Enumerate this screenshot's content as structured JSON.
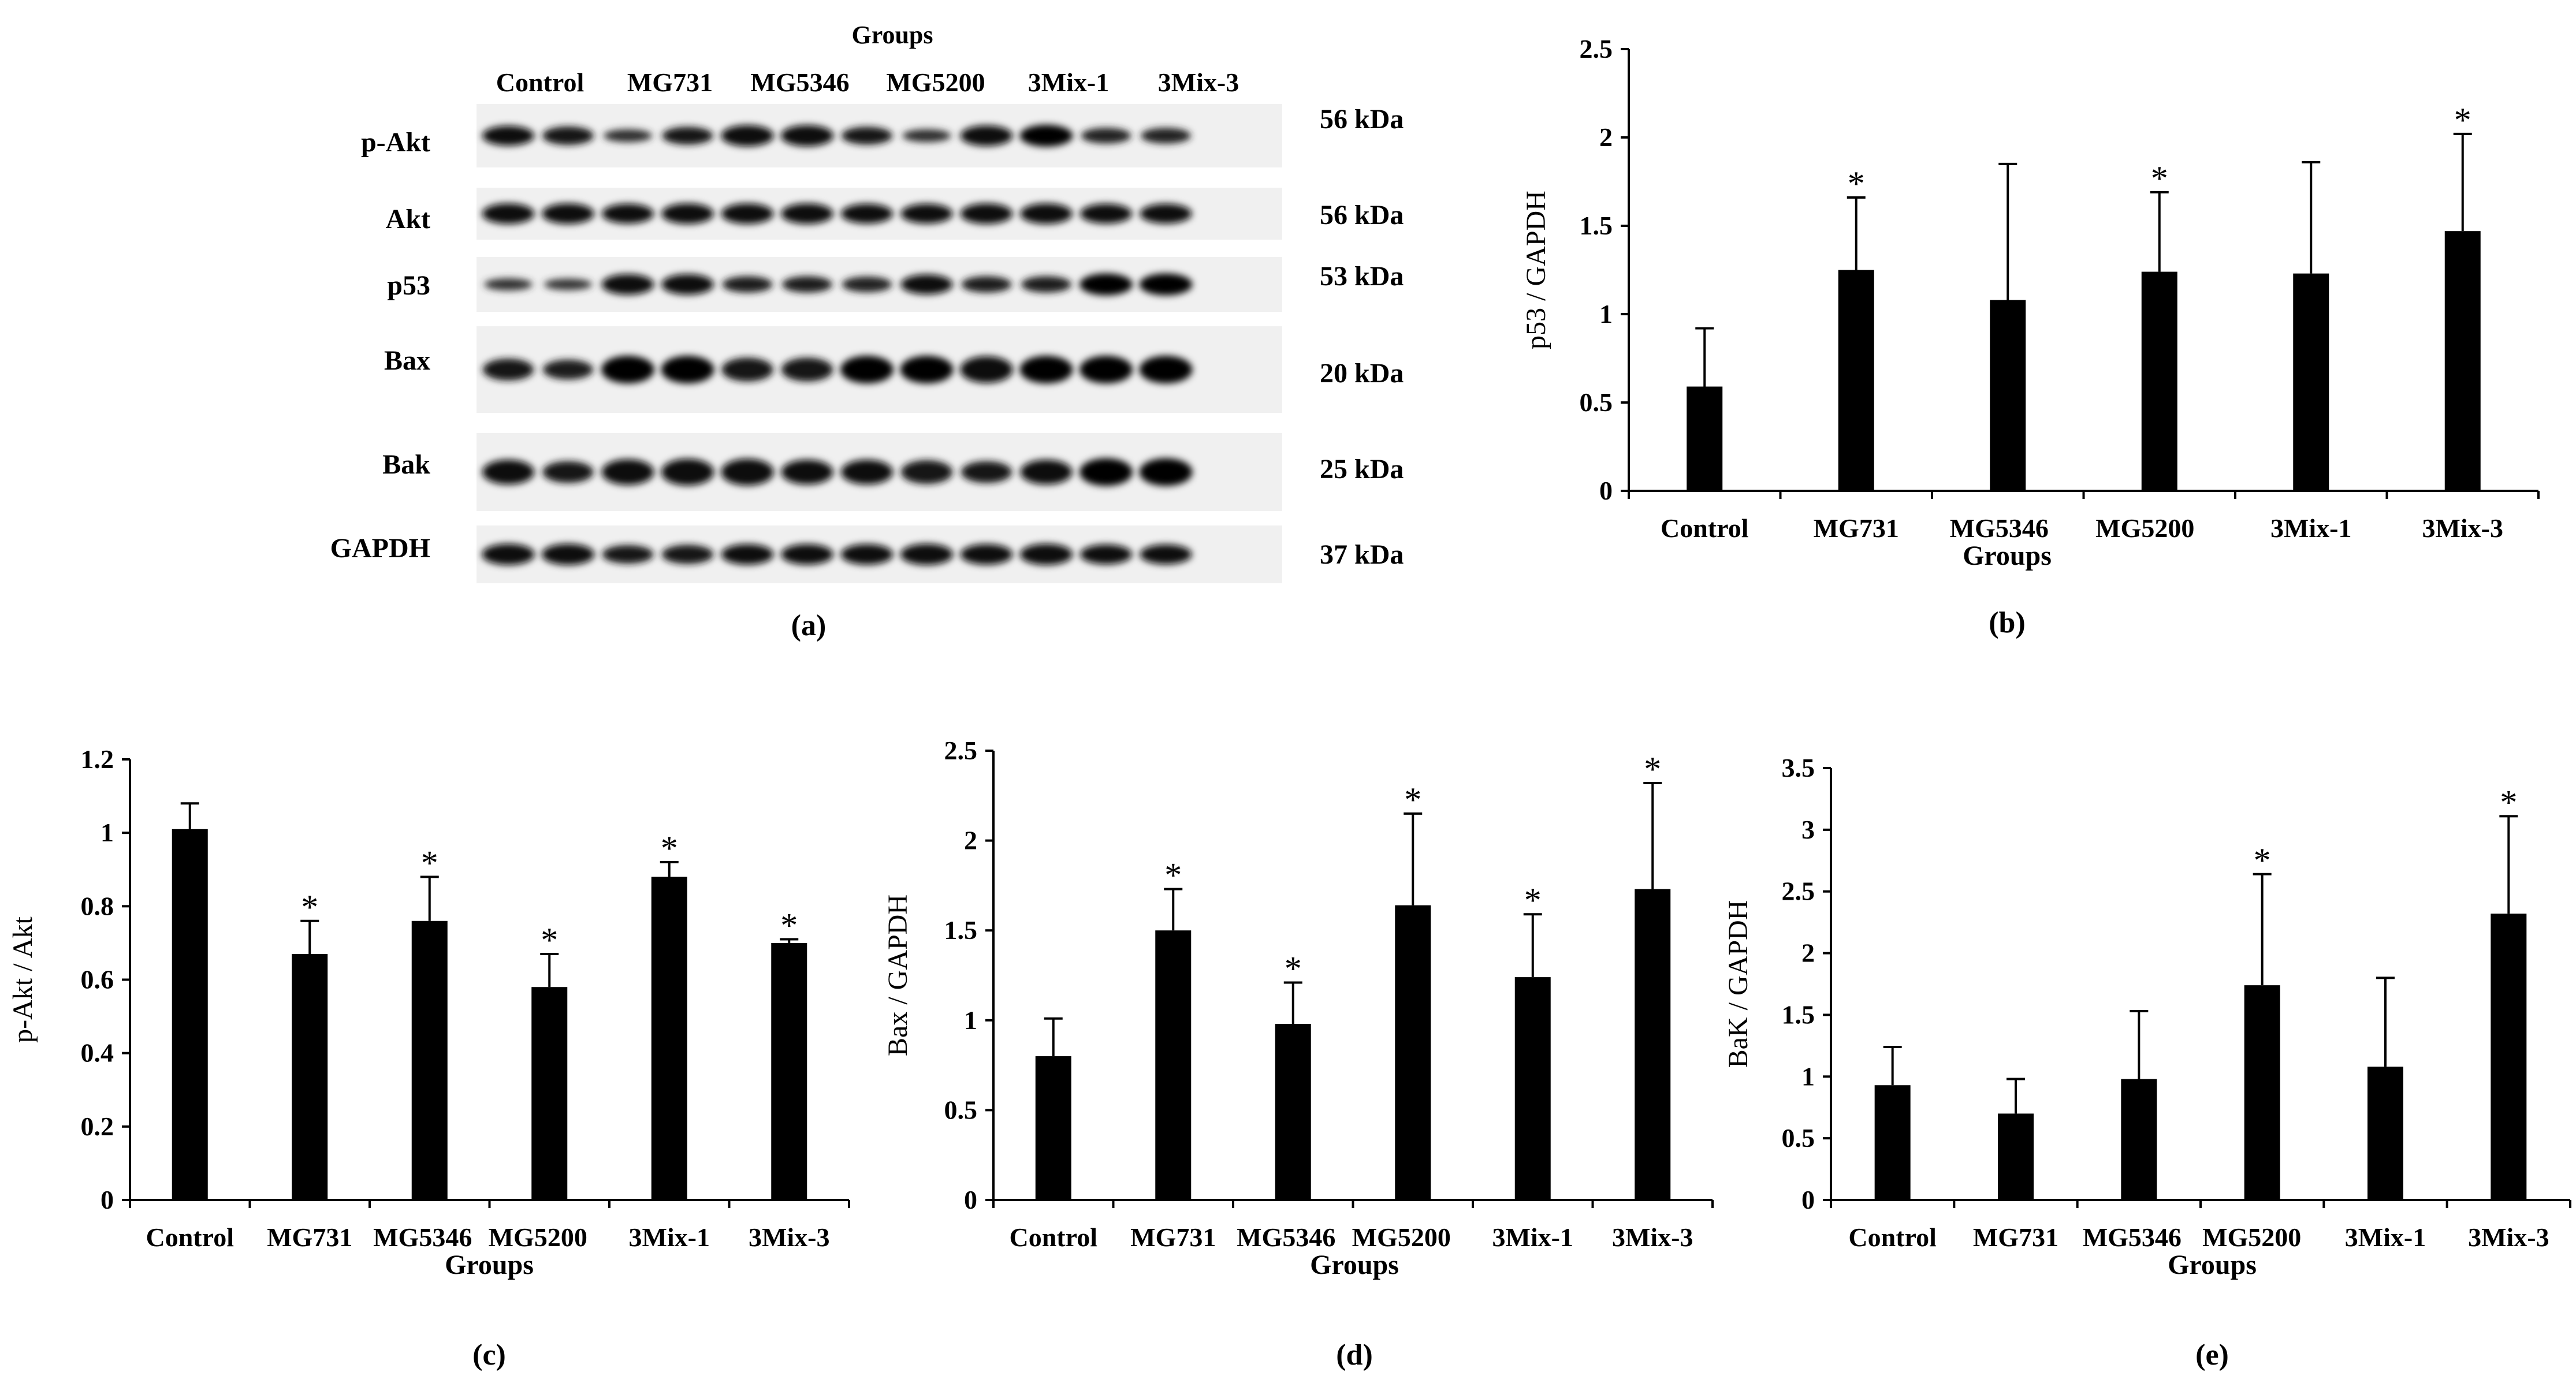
{
  "blot": {
    "groups_title": "Groups",
    "groups": [
      "Control",
      "MG731",
      "MG5346",
      "MG5200",
      "3Mix-1",
      "3Mix-3"
    ],
    "bands": [
      {
        "label": "p-Akt",
        "size": "56 kDa",
        "intensity": [
          0.85,
          0.75,
          0.35,
          0.7,
          0.95,
          0.95,
          0.7,
          0.35,
          0.9,
          1.0,
          0.55,
          0.55
        ]
      },
      {
        "label": "Akt",
        "size": "56 kDa",
        "intensity": [
          0.9,
          0.9,
          0.85,
          0.9,
          0.9,
          0.9,
          0.85,
          0.85,
          0.9,
          0.9,
          0.85,
          0.85
        ]
      },
      {
        "label": "p53",
        "size": "53 kDa",
        "intensity": [
          0.3,
          0.25,
          0.9,
          0.9,
          0.6,
          0.6,
          0.55,
          0.85,
          0.6,
          0.6,
          1.0,
          1.0
        ]
      },
      {
        "label": "Bax",
        "size": "20 kDa",
        "intensity": [
          0.7,
          0.6,
          1.0,
          1.0,
          0.8,
          0.8,
          1.0,
          1.0,
          0.95,
          1.0,
          1.0,
          1.0
        ]
      },
      {
        "label": "Bak",
        "size": "25 kDa",
        "intensity": [
          0.85,
          0.7,
          0.9,
          0.95,
          0.95,
          0.85,
          0.85,
          0.8,
          0.7,
          0.85,
          1.0,
          1.0
        ]
      },
      {
        "label": "GAPDH",
        "size": "37 kDa",
        "intensity": [
          0.95,
          0.95,
          0.75,
          0.8,
          0.9,
          0.9,
          0.9,
          0.95,
          0.9,
          0.95,
          0.85,
          0.85
        ]
      }
    ],
    "panel_label": "(a)"
  },
  "chart_data": [
    {
      "id": "b",
      "type": "bar",
      "categories": [
        "Control",
        "MG731",
        "MG5346",
        "MG5200",
        "3Mix-1",
        "3Mix-3"
      ],
      "values": [
        0.59,
        1.25,
        1.08,
        1.24,
        1.23,
        1.47
      ],
      "errors": [
        0.33,
        0.41,
        0.77,
        0.45,
        0.63,
        0.55
      ],
      "significant": [
        false,
        true,
        false,
        true,
        false,
        true
      ],
      "title": "",
      "xlabel": "Groups",
      "ylabel": "p53 / GAPDH",
      "ylim": [
        0,
        2.5
      ],
      "yticks": [
        "0",
        "0.5",
        "1",
        "1.5",
        "2",
        "2.5"
      ],
      "ytick_values": [
        0,
        0.5,
        1,
        1.5,
        2,
        2.5
      ],
      "sig_mark": "*",
      "panel_label": "(b)",
      "grid": false
    },
    {
      "id": "c",
      "type": "bar",
      "categories": [
        "Control",
        "MG731",
        "MG5346",
        "MG5200",
        "3Mix-1",
        "3Mix-3"
      ],
      "values": [
        1.01,
        0.67,
        0.76,
        0.58,
        0.88,
        0.7
      ],
      "errors": [
        0.07,
        0.09,
        0.12,
        0.09,
        0.04,
        0.01
      ],
      "significant": [
        false,
        true,
        true,
        true,
        true,
        true
      ],
      "title": "",
      "xlabel": "Groups",
      "ylabel": "p-Akt / Akt",
      "ylim": [
        0,
        1.2
      ],
      "yticks": [
        "0",
        "0.2",
        "0.4",
        "0.6",
        "0.8",
        "1",
        "1.2"
      ],
      "ytick_values": [
        0,
        0.2,
        0.4,
        0.6,
        0.8,
        1.0,
        1.2
      ],
      "sig_mark": "*",
      "panel_label": "(c)",
      "grid": false
    },
    {
      "id": "d",
      "type": "bar",
      "categories": [
        "Control",
        "MG731",
        "MG5346",
        "MG5200",
        "3Mix-1",
        "3Mix-3"
      ],
      "values": [
        0.8,
        1.5,
        0.98,
        1.64,
        1.24,
        1.73
      ],
      "errors": [
        0.21,
        0.23,
        0.23,
        0.51,
        0.35,
        0.59
      ],
      "significant": [
        false,
        true,
        true,
        true,
        true,
        true
      ],
      "title": "",
      "xlabel": "Groups",
      "ylabel": "Bax / GAPDH",
      "ylim": [
        0,
        2.5
      ],
      "yticks": [
        "0",
        "0.5",
        "1",
        "1.5",
        "2",
        "2.5"
      ],
      "ytick_values": [
        0,
        0.5,
        1,
        1.5,
        2,
        2.5
      ],
      "sig_mark": "*",
      "panel_label": "(d)",
      "grid": false
    },
    {
      "id": "e",
      "type": "bar",
      "categories": [
        "Control",
        "MG731",
        "MG5346",
        "MG5200",
        "3Mix-1",
        "3Mix-3"
      ],
      "values": [
        0.93,
        0.7,
        0.98,
        1.74,
        1.08,
        2.32
      ],
      "errors": [
        0.31,
        0.28,
        0.55,
        0.9,
        0.72,
        0.79
      ],
      "significant": [
        false,
        false,
        false,
        true,
        false,
        true
      ],
      "title": "",
      "xlabel": "Groups",
      "ylabel": "BaK / GAPDH",
      "ylim": [
        0,
        3.5
      ],
      "yticks": [
        "0",
        "0.5",
        "1",
        "1.5",
        "2",
        "2.5",
        "3",
        "3.5"
      ],
      "ytick_values": [
        0,
        0.5,
        1,
        1.5,
        2,
        2.5,
        3,
        3.5
      ],
      "sig_mark": "*",
      "panel_label": "(e)",
      "grid": false
    }
  ]
}
